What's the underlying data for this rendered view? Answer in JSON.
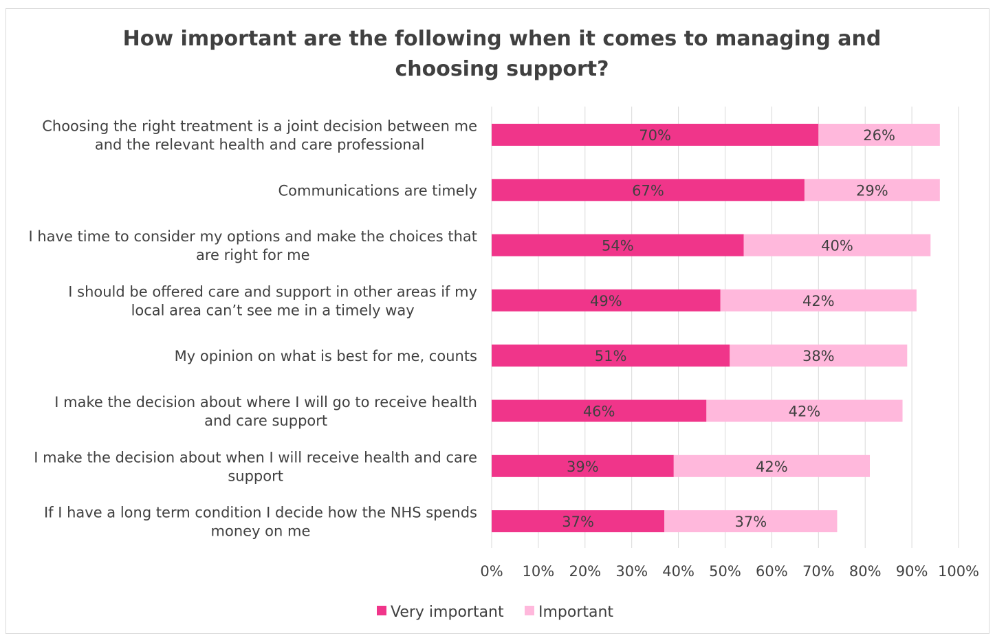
{
  "chart_data": {
    "type": "bar",
    "orientation": "horizontal",
    "stacked": true,
    "title_lines": [
      "How important are the  following when it comes to managing and",
      "choosing support?"
    ],
    "categories": [
      [
        "Choosing the right treatment is a joint decision between me",
        "and the relevant health and care professional"
      ],
      [
        "Communications are timely"
      ],
      [
        "I have time to consider my options and make the choices that",
        "are right for me"
      ],
      [
        "I should be offered care and support in other areas if my",
        "local area can’t see me in a timely way"
      ],
      [
        "My opinion on what is best for me, counts"
      ],
      [
        "I make the decision about where I will go to receive health",
        "and care support"
      ],
      [
        "I make the decision about when I will receive health and care",
        "support"
      ],
      [
        "If I have a long term condition I decide how the NHS spends",
        "money on me"
      ]
    ],
    "series": [
      {
        "name": "Very important",
        "color": "#f0358a",
        "values": [
          70,
          67,
          54,
          49,
          51,
          46,
          39,
          37
        ],
        "labels": [
          "70%",
          "67%",
          "54%",
          "49%",
          "51%",
          "46%",
          "39%",
          "37%"
        ]
      },
      {
        "name": "Important",
        "color": "#ffb8dc",
        "values": [
          26,
          29,
          40,
          42,
          38,
          42,
          42,
          37
        ],
        "labels": [
          "26%",
          "29%",
          "40%",
          "42%",
          "38%",
          "42%",
          "42%",
          "37%"
        ]
      }
    ],
    "xlim": [
      0,
      100
    ],
    "xticks": [
      0,
      10,
      20,
      30,
      40,
      50,
      60,
      70,
      80,
      90,
      100
    ],
    "xtick_labels": [
      "0%",
      "10%",
      "20%",
      "30%",
      "40%",
      "50%",
      "60%",
      "70%",
      "80%",
      "90%",
      "100%"
    ],
    "grid": true,
    "legend_position": "bottom"
  }
}
